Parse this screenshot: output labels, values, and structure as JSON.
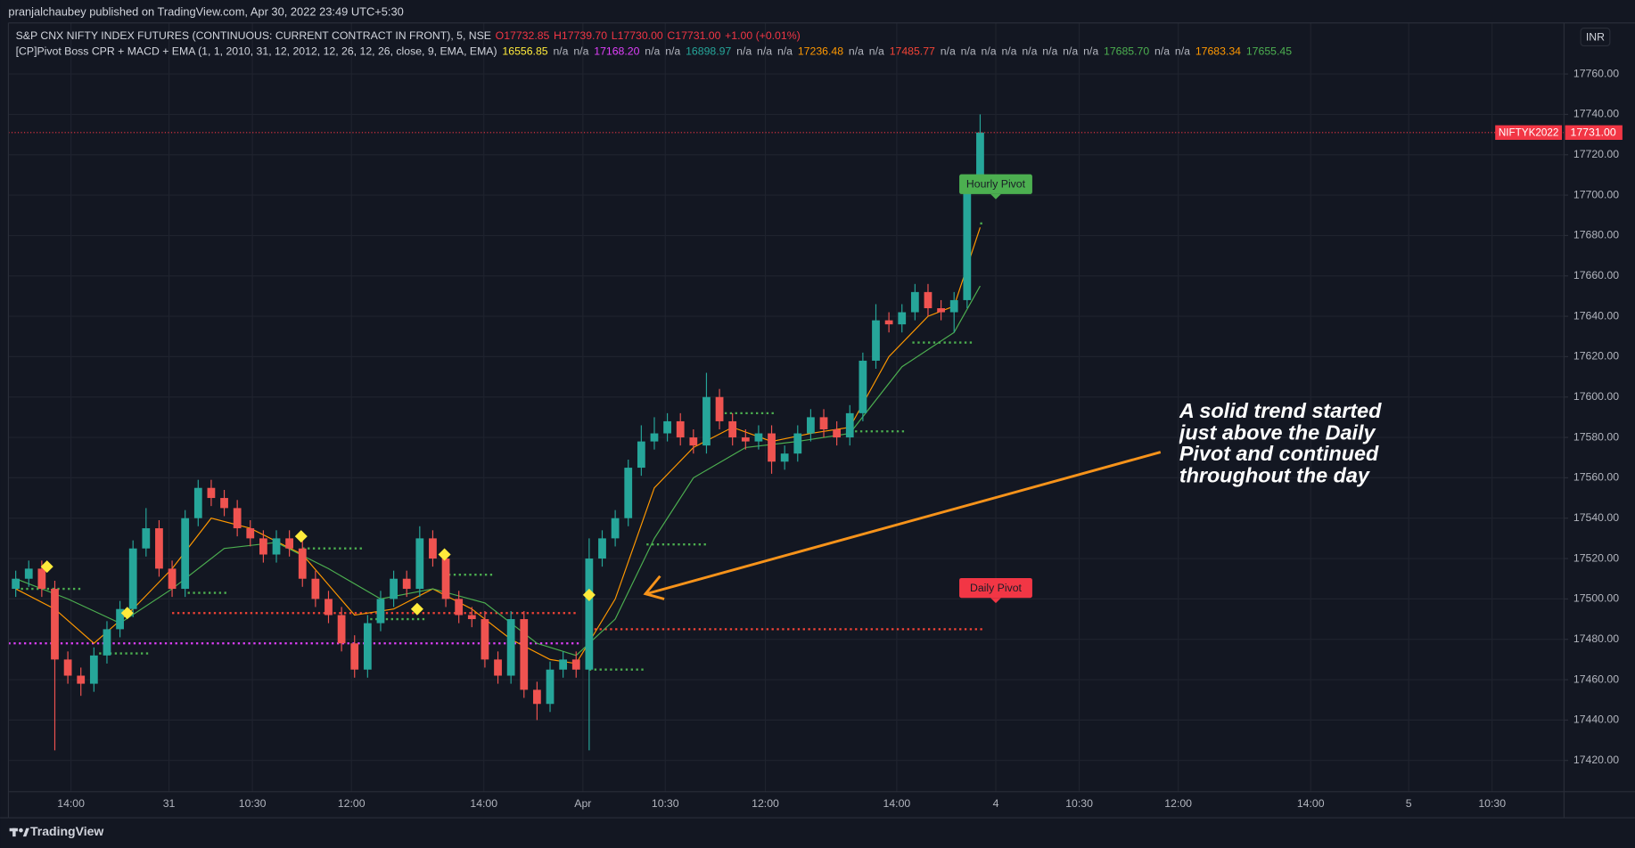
{
  "header": {
    "published": "pranjalchaubey published on TradingView.com, Apr 30, 2022 23:49 UTC+5:30",
    "symbol": "S&P CNX NIFTY INDEX FUTURES (CONTINUOUS: CURRENT CONTRACT IN FRONT), 5, NSE",
    "ohlc": [
      "O17732.85",
      "H17739.70",
      "L17730.00",
      "C17731.00",
      "+1.00 (+0.01%)"
    ],
    "indicator": "[CP]Pivot Boss CPR + MACD + EMA (1, 1, 2010, 31, 12, 2012, 12, 26, 12, 26, close, 9, EMA, EMA)",
    "indicator_values": [
      {
        "text": "16556.85",
        "color": "#ffeb3b"
      },
      {
        "text": "n/a",
        "color": "#b2b5be"
      },
      {
        "text": "n/a",
        "color": "#b2b5be"
      },
      {
        "text": "17168.20",
        "color": "#e040fb"
      },
      {
        "text": "n/a",
        "color": "#b2b5be"
      },
      {
        "text": "n/a",
        "color": "#b2b5be"
      },
      {
        "text": "16898.97",
        "color": "#26a69a"
      },
      {
        "text": "n/a",
        "color": "#b2b5be"
      },
      {
        "text": "n/a",
        "color": "#b2b5be"
      },
      {
        "text": "n/a",
        "color": "#b2b5be"
      },
      {
        "text": "17236.48",
        "color": "#ff9800"
      },
      {
        "text": "n/a",
        "color": "#b2b5be"
      },
      {
        "text": "n/a",
        "color": "#b2b5be"
      },
      {
        "text": "17485.77",
        "color": "#f44336"
      },
      {
        "text": "n/a",
        "color": "#b2b5be"
      },
      {
        "text": "n/a",
        "color": "#b2b5be"
      },
      {
        "text": "n/a",
        "color": "#b2b5be"
      },
      {
        "text": "n/a",
        "color": "#b2b5be"
      },
      {
        "text": "n/a",
        "color": "#b2b5be"
      },
      {
        "text": "n/a",
        "color": "#b2b5be"
      },
      {
        "text": "n/a",
        "color": "#b2b5be"
      },
      {
        "text": "n/a",
        "color": "#b2b5be"
      },
      {
        "text": "17685.70",
        "color": "#4caf50"
      },
      {
        "text": "n/a",
        "color": "#b2b5be"
      },
      {
        "text": "n/a",
        "color": "#b2b5be"
      },
      {
        "text": "17683.34",
        "color": "#ff9800"
      },
      {
        "text": "17655.45",
        "color": "#4caf50"
      }
    ],
    "currency": "INR",
    "brand": "TradingView"
  },
  "chart_data": {
    "type": "candlestick",
    "up_color": "#26a69a",
    "down_color": "#ef5350",
    "grid": true,
    "x": [
      0,
      1,
      2,
      3,
      4,
      5,
      6,
      7,
      8,
      9,
      10,
      11,
      12,
      13,
      14,
      15,
      16,
      17,
      18,
      19,
      20,
      21,
      22,
      23,
      24,
      25,
      26,
      27,
      28,
      29,
      30,
      31,
      32,
      33,
      34,
      35,
      36,
      37,
      38,
      39,
      40,
      41,
      42,
      43,
      44,
      45,
      46,
      47,
      48,
      49,
      50,
      51,
      52,
      53,
      54,
      55,
      56,
      57,
      58,
      59,
      60,
      61,
      62,
      63,
      64,
      65,
      66,
      67,
      68,
      69,
      70,
      71,
      72,
      73,
      74
    ],
    "open": [
      17505,
      17510,
      17515,
      17505,
      17470,
      17462,
      17458,
      17472,
      17485,
      17495,
      17525,
      17535,
      17515,
      17505,
      17540,
      17555,
      17550,
      17545,
      17535,
      17530,
      17522,
      17530,
      17525,
      17510,
      17500,
      17492,
      17478,
      17465,
      17488,
      17500,
      17510,
      17505,
      17530,
      17520,
      17500,
      17492,
      17490,
      17470,
      17462,
      17490,
      17455,
      17448,
      17465,
      17470,
      17465,
      17520,
      17530,
      17540,
      17565,
      17578,
      17582,
      17588,
      17580,
      17576,
      17600,
      17588,
      17580,
      17578,
      17582,
      17568,
      17572,
      17582,
      17590,
      17584,
      17580,
      17592,
      17618,
      17638,
      17636,
      17642,
      17652,
      17644,
      17642,
      17648,
      17705
    ],
    "high": [
      17514,
      17519,
      17519,
      17509,
      17474,
      17466,
      17476,
      17489,
      17499,
      17529,
      17545,
      17539,
      17519,
      17544,
      17559,
      17559,
      17554,
      17549,
      17539,
      17534,
      17534,
      17534,
      17529,
      17514,
      17504,
      17496,
      17482,
      17492,
      17504,
      17514,
      17514,
      17536,
      17534,
      17524,
      17504,
      17496,
      17494,
      17474,
      17494,
      17494,
      17459,
      17469,
      17474,
      17474,
      17530,
      17534,
      17544,
      17569,
      17586,
      17590,
      17592,
      17592,
      17584,
      17612,
      17604,
      17592,
      17584,
      17586,
      17586,
      17576,
      17586,
      17594,
      17594,
      17588,
      17596,
      17622,
      17646,
      17642,
      17646,
      17656,
      17656,
      17648,
      17652,
      17709,
      17740
    ],
    "low": [
      17501,
      17506,
      17501,
      17425,
      17458,
      17452,
      17454,
      17468,
      17481,
      17491,
      17521,
      17511,
      17501,
      17501,
      17536,
      17546,
      17541,
      17531,
      17526,
      17518,
      17518,
      17521,
      17506,
      17496,
      17488,
      17474,
      17461,
      17461,
      17484,
      17496,
      17501,
      17501,
      17516,
      17496,
      17488,
      17486,
      17466,
      17458,
      17458,
      17451,
      17440,
      17444,
      17461,
      17461,
      17425,
      17516,
      17526,
      17536,
      17561,
      17574,
      17578,
      17576,
      17572,
      17572,
      17584,
      17576,
      17574,
      17574,
      17562,
      17564,
      17568,
      17578,
      17580,
      17576,
      17576,
      17588,
      17614,
      17632,
      17632,
      17638,
      17640,
      17638,
      17632,
      17644,
      17701
    ],
    "close": [
      17510,
      17515,
      17505,
      17470,
      17462,
      17458,
      17472,
      17485,
      17495,
      17525,
      17535,
      17515,
      17505,
      17540,
      17555,
      17550,
      17545,
      17535,
      17530,
      17522,
      17530,
      17525,
      17510,
      17500,
      17492,
      17478,
      17465,
      17488,
      17500,
      17510,
      17505,
      17530,
      17520,
      17500,
      17492,
      17490,
      17470,
      17462,
      17490,
      17455,
      17448,
      17465,
      17470,
      17465,
      17520,
      17530,
      17540,
      17565,
      17578,
      17582,
      17588,
      17580,
      17576,
      17600,
      17588,
      17580,
      17578,
      17582,
      17568,
      17572,
      17582,
      17590,
      17584,
      17580,
      17592,
      17618,
      17638,
      17636,
      17642,
      17652,
      17644,
      17642,
      17648,
      17705,
      17731
    ],
    "lines": [
      {
        "color": "#ff9800",
        "x": [
          0,
          3,
          6,
          9,
          12,
          15,
          18,
          22,
          26,
          29,
          32,
          35,
          38,
          41,
          43,
          46,
          49,
          52,
          55,
          58,
          61,
          64,
          67,
          70,
          72,
          74
        ],
        "values": [
          17505,
          17495,
          17478,
          17495,
          17515,
          17540,
          17535,
          17522,
          17492,
          17495,
          17505,
          17495,
          17480,
          17470,
          17468,
          17500,
          17555,
          17575,
          17585,
          17578,
          17582,
          17585,
          17620,
          17640,
          17645,
          17684
        ]
      },
      {
        "color": "#4caf50",
        "x": [
          0,
          4,
          8,
          12,
          16,
          20,
          24,
          28,
          32,
          36,
          40,
          43,
          46,
          49,
          52,
          56,
          60,
          64,
          68,
          72,
          74
        ],
        "values": [
          17510,
          17500,
          17488,
          17505,
          17525,
          17528,
          17515,
          17500,
          17505,
          17498,
          17478,
          17472,
          17490,
          17530,
          17560,
          17575,
          17578,
          17582,
          17615,
          17632,
          17655
        ]
      }
    ],
    "pivots": [
      {
        "color": "#e040fb",
        "x": [
          -0.56,
          43.2
        ],
        "y": 17478
      },
      {
        "color": "#f44336",
        "x": [
          12,
          43.2
        ],
        "y": 17493
      },
      {
        "color": "#f44336",
        "x": [
          44,
          74.4
        ],
        "y": 17485
      },
      {
        "color": "#4caf50",
        "x": [
          0,
          5.2
        ],
        "y": 17505
      },
      {
        "color": "#4caf50",
        "x": [
          6.4,
          10.4
        ],
        "y": 17473
      },
      {
        "color": "#4caf50",
        "x": [
          13.2,
          16.4
        ],
        "y": 17503
      },
      {
        "color": "#4caf50",
        "x": [
          22,
          26.8
        ],
        "y": 17525
      },
      {
        "color": "#4caf50",
        "x": [
          27.2,
          31.6
        ],
        "y": 17490
      },
      {
        "color": "#4caf50",
        "x": [
          32.8,
          36.8
        ],
        "y": 17512
      },
      {
        "color": "#4caf50",
        "x": [
          44,
          48.4
        ],
        "y": 17465
      },
      {
        "color": "#4caf50",
        "x": [
          48.4,
          53.2
        ],
        "y": 17527
      },
      {
        "color": "#4caf50",
        "x": [
          54,
          58.4
        ],
        "y": 17592
      },
      {
        "color": "#4caf50",
        "x": [
          64,
          68.4
        ],
        "y": 17583
      },
      {
        "color": "#4caf50",
        "x": [
          68.8,
          73.6
        ],
        "y": 17627
      },
      {
        "color": "#4caf50",
        "x": [
          74,
          74.4
        ],
        "y": 17686
      }
    ],
    "marker_color": "#ffeb3b",
    "markers": [
      {
        "x": 2.4,
        "y": 17516
      },
      {
        "x": 8.56,
        "y": 17493
      },
      {
        "x": 21.9,
        "y": 17531
      },
      {
        "x": 30.8,
        "y": 17495
      },
      {
        "x": 32.9,
        "y": 17522
      },
      {
        "x": 44,
        "y": 17502
      }
    ],
    "pivot_labels": [
      {
        "text": "Hourly Pivot",
        "x": 75.2,
        "y": 17700,
        "color": "#4caf50"
      },
      {
        "text": "Daily Pivot",
        "x": 75.2,
        "y": 17500,
        "color": "#f23645"
      }
    ],
    "last_price": {
      "symbol": "NIFTYK2022",
      "value": 17731,
      "label": "17731.00",
      "color": "#f23645"
    },
    "annotation": "A solid trend started just above the Daily Pivot and continued throughout the day",
    "xlim": [
      -0.56,
      118.8
    ],
    "xticks": [
      {
        "value": 4.24,
        "label": "14:00"
      },
      {
        "value": 11.76,
        "label": "31"
      },
      {
        "value": 18.16,
        "label": "10:30"
      },
      {
        "value": 25.76,
        "label": "12:00"
      },
      {
        "value": 35.92,
        "label": "14:00"
      },
      {
        "value": 43.52,
        "label": "Apr"
      },
      {
        "value": 49.84,
        "label": "10:30"
      },
      {
        "value": 57.52,
        "label": "12:00"
      },
      {
        "value": 67.6,
        "label": "14:00"
      },
      {
        "value": 75.2,
        "label": "4"
      },
      {
        "value": 81.6,
        "label": "10:30"
      },
      {
        "value": 89.2,
        "label": "12:00"
      },
      {
        "value": 99.36,
        "label": "14:00"
      },
      {
        "value": 106.88,
        "label": "5"
      },
      {
        "value": 113.28,
        "label": "10:30"
      }
    ],
    "ylim": [
      17404.5,
      17785.3
    ],
    "yticks": [
      {
        "value": 17420,
        "label": "17420.00"
      },
      {
        "value": 17440,
        "label": "17440.00"
      },
      {
        "value": 17460,
        "label": "17460.00"
      },
      {
        "value": 17480,
        "label": "17480.00"
      },
      {
        "value": 17500,
        "label": "17500.00"
      },
      {
        "value": 17520,
        "label": "17520.00"
      },
      {
        "value": 17540,
        "label": "17540.00"
      },
      {
        "value": 17560,
        "label": "17560.00"
      },
      {
        "value": 17580,
        "label": "17580.00"
      },
      {
        "value": 17600,
        "label": "17600.00"
      },
      {
        "value": 17620,
        "label": "17620.00"
      },
      {
        "value": 17640,
        "label": "17640.00"
      },
      {
        "value": 17660,
        "label": "17660.00"
      },
      {
        "value": 17680,
        "label": "17680.00"
      },
      {
        "value": 17700,
        "label": "17700.00"
      },
      {
        "value": 17720,
        "label": "17720.00"
      },
      {
        "value": 17740,
        "label": "17740.00"
      },
      {
        "value": 17760,
        "label": "17760.00"
      }
    ]
  }
}
